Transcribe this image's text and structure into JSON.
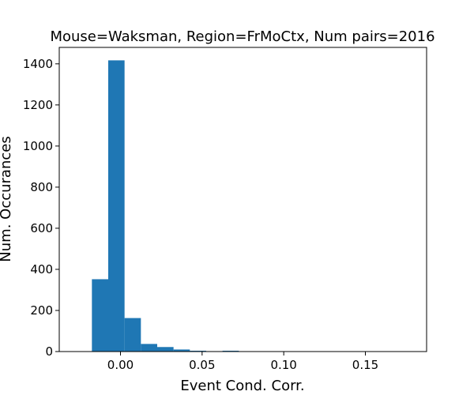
{
  "chart_data": {
    "type": "bar",
    "title": "Mouse=Waksman, Region=FrMoCtx, Num pairs=2016",
    "xlabel": "Event Cond. Corr.",
    "ylabel": "Num. Occurances",
    "xlim": [
      -0.0375,
      0.1875
    ],
    "ylim": [
      0,
      1480
    ],
    "x_ticks": [
      0.0,
      0.05,
      0.1,
      0.15
    ],
    "x_tick_labels": [
      "0.00",
      "0.05",
      "0.10",
      "0.15"
    ],
    "y_ticks": [
      0,
      200,
      400,
      600,
      800,
      1000,
      1200,
      1400
    ],
    "y_tick_labels": [
      "0",
      "200",
      "400",
      "600",
      "800",
      "1000",
      "1200",
      "1400"
    ],
    "bin_edges": [
      -0.0175,
      -0.0075,
      0.0025,
      0.0125,
      0.0225,
      0.0325,
      0.0425,
      0.0525,
      0.0625,
      0.0725,
      0.0825,
      0.0925,
      0.1025,
      0.1125,
      0.1225,
      0.1325,
      0.1425,
      0.1525,
      0.1625,
      0.1725,
      0.1775
    ],
    "counts": [
      352,
      1417,
      163,
      37,
      22,
      10,
      4,
      2,
      4,
      1,
      1,
      1,
      1,
      0,
      0,
      0,
      0,
      0,
      0,
      1
    ],
    "bar_color": "#1f77b4",
    "grid": false
  }
}
